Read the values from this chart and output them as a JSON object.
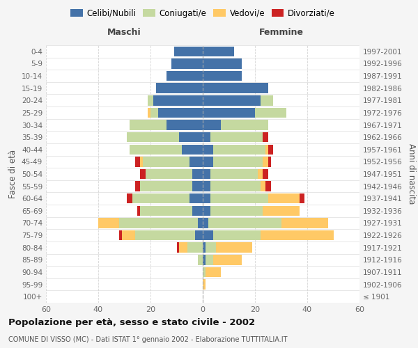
{
  "age_groups": [
    "100+",
    "95-99",
    "90-94",
    "85-89",
    "80-84",
    "75-79",
    "70-74",
    "65-69",
    "60-64",
    "55-59",
    "50-54",
    "45-49",
    "40-44",
    "35-39",
    "30-34",
    "25-29",
    "20-24",
    "15-19",
    "10-14",
    "5-9",
    "0-4"
  ],
  "birth_years": [
    "≤ 1901",
    "1902-1906",
    "1907-1911",
    "1912-1916",
    "1917-1921",
    "1922-1926",
    "1927-1931",
    "1932-1936",
    "1937-1941",
    "1942-1946",
    "1947-1951",
    "1952-1956",
    "1957-1961",
    "1962-1966",
    "1967-1971",
    "1972-1976",
    "1977-1981",
    "1982-1986",
    "1987-1991",
    "1992-1996",
    "1997-2001"
  ],
  "maschi": {
    "celibi": [
      0,
      0,
      0,
      0,
      0,
      3,
      2,
      4,
      5,
      4,
      4,
      5,
      8,
      9,
      14,
      17,
      19,
      18,
      14,
      12,
      11
    ],
    "coniugati": [
      0,
      0,
      0,
      2,
      6,
      23,
      30,
      20,
      22,
      20,
      18,
      18,
      20,
      20,
      14,
      3,
      2,
      0,
      0,
      0,
      0
    ],
    "vedovi": [
      0,
      0,
      0,
      0,
      3,
      5,
      8,
      0,
      0,
      0,
      0,
      1,
      0,
      0,
      0,
      1,
      0,
      0,
      0,
      0,
      0
    ],
    "divorziati": [
      0,
      0,
      0,
      0,
      1,
      1,
      0,
      1,
      2,
      2,
      2,
      2,
      0,
      0,
      0,
      0,
      0,
      0,
      0,
      0,
      0
    ]
  },
  "femmine": {
    "nubili": [
      0,
      0,
      0,
      1,
      1,
      4,
      2,
      3,
      3,
      3,
      3,
      4,
      4,
      3,
      7,
      20,
      22,
      25,
      15,
      15,
      12
    ],
    "coniugate": [
      0,
      0,
      1,
      3,
      4,
      18,
      28,
      20,
      22,
      19,
      18,
      19,
      20,
      20,
      18,
      12,
      5,
      0,
      0,
      0,
      0
    ],
    "vedove": [
      0,
      1,
      6,
      11,
      14,
      28,
      18,
      14,
      12,
      2,
      2,
      2,
      1,
      0,
      0,
      0,
      0,
      0,
      0,
      0,
      0
    ],
    "divorziate": [
      0,
      0,
      0,
      0,
      0,
      0,
      0,
      0,
      2,
      2,
      2,
      1,
      2,
      2,
      0,
      0,
      0,
      0,
      0,
      0,
      0
    ]
  },
  "colors": {
    "celibi": "#4472a8",
    "coniugati": "#c5d9a0",
    "vedovi": "#ffc966",
    "divorziati": "#cc2222"
  },
  "xlim": 60,
  "title": "Popolazione per età, sesso e stato civile - 2002",
  "subtitle": "COMUNE DI VISSO (MC) - Dati ISTAT 1° gennaio 2002 - Elaborazione TUTTITALIA.IT",
  "ylabel_left": "Fasce di età",
  "ylabel_right": "Anni di nascita",
  "xlabel_left": "Maschi",
  "xlabel_right": "Femmine",
  "bg_color": "#f5f5f5",
  "plot_bg": "#ffffff",
  "grid_color": "#cccccc"
}
